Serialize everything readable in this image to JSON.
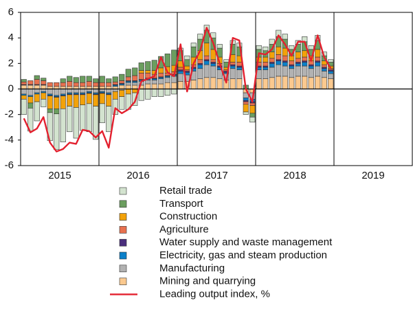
{
  "chart_data": {
    "type": "stacked-bar-line",
    "categories": [
      "2015",
      null,
      null,
      null,
      null,
      null,
      null,
      null,
      null,
      null,
      null,
      null,
      "2016",
      null,
      null,
      null,
      null,
      null,
      null,
      null,
      null,
      null,
      null,
      null,
      "2017",
      null,
      null,
      null,
      null,
      null,
      null,
      null,
      null,
      null,
      null,
      null,
      "2018",
      null,
      null,
      null,
      null,
      null,
      null,
      null,
      null,
      null,
      null,
      null,
      "2019",
      null,
      null,
      null,
      null,
      null,
      null,
      null,
      null,
      null,
      null,
      null
    ],
    "ylim": [
      -6,
      6
    ],
    "yticks": [
      -6,
      -4,
      -2,
      0,
      2,
      4,
      6
    ],
    "series": [
      {
        "name": "Retail trade",
        "color": "#d3e3cf",
        "values": [
          -1.2,
          -1.8,
          -1.5,
          -0.6,
          -2.2,
          -2.8,
          -2.6,
          -2.0,
          -2.4,
          -2.0,
          -2.2,
          -2.6,
          -1.5,
          -2.0,
          -1.2,
          -1.0,
          -1.2,
          -1.0,
          -0.9,
          -0.8,
          -0.6,
          -0.6,
          -0.5,
          -0.4,
          0.2,
          0.3,
          0.3,
          0.4,
          0.4,
          0.4,
          0.3,
          0.2,
          0.3,
          0.3,
          -0.2,
          -0.4,
          0.3,
          0.3,
          0.4,
          0.5,
          0.4,
          0.3,
          0.3,
          0.4,
          0.3,
          0.4,
          0.3,
          0.2,
          null,
          null,
          null,
          null,
          null,
          null,
          null,
          null,
          null,
          null,
          null,
          null
        ]
      },
      {
        "name": "Transport",
        "color": "#6b9e5f",
        "values": [
          0.2,
          -0.4,
          0.3,
          0.2,
          -0.3,
          -0.4,
          0.3,
          0.4,
          0.4,
          0.5,
          0.4,
          0.3,
          0.5,
          0.3,
          0.4,
          0.5,
          0.6,
          0.6,
          0.6,
          0.7,
          0.8,
          0.9,
          1.0,
          1.2,
          0.8,
          0.5,
          0.8,
          0.9,
          1.0,
          0.9,
          0.7,
          0.4,
          0.8,
          0.7,
          0.3,
          -0.3,
          0.6,
          0.5,
          0.6,
          0.8,
          0.7,
          0.5,
          0.6,
          0.7,
          0.5,
          0.7,
          0.4,
          0.3,
          null,
          null,
          null,
          null,
          null,
          null,
          null,
          null,
          null,
          null,
          null,
          null
        ]
      },
      {
        "name": "Construction",
        "color": "#f2a20a",
        "values": [
          -0.3,
          -0.5,
          -0.6,
          -0.5,
          -1.0,
          -0.9,
          -1.0,
          -0.9,
          -1.0,
          -0.8,
          -0.8,
          -0.9,
          -0.8,
          -0.9,
          -0.6,
          -0.5,
          -0.4,
          -0.3,
          0.2,
          0.2,
          0.3,
          0.4,
          0.5,
          0.5,
          0.5,
          0.3,
          0.6,
          0.7,
          1.0,
          0.8,
          0.5,
          0.2,
          0.6,
          0.5,
          -0.6,
          -0.6,
          0.4,
          0.4,
          0.5,
          0.6,
          0.6,
          0.4,
          0.5,
          0.5,
          0.4,
          0.6,
          0.3,
          0.2,
          null,
          null,
          null,
          null,
          null,
          null,
          null,
          null,
          null,
          null,
          null,
          null
        ]
      },
      {
        "name": "Agriculture",
        "color": "#e8714f",
        "values": [
          0.2,
          0.3,
          0.4,
          0.3,
          0.3,
          0.3,
          0.3,
          0.4,
          0.3,
          0.3,
          0.4,
          0.3,
          0.3,
          0.3,
          0.2,
          0.2,
          0.3,
          0.4,
          0.5,
          0.4,
          0.3,
          0.3,
          0.2,
          0.2,
          0.2,
          0.1,
          0.2,
          0.3,
          0.3,
          0.2,
          0.2,
          0.1,
          0.2,
          0.3,
          -0.2,
          -0.2,
          0.3,
          0.3,
          0.3,
          0.4,
          0.4,
          0.3,
          0.3,
          0.3,
          0.3,
          0.3,
          0.2,
          0.1,
          null,
          null,
          null,
          null,
          null,
          null,
          null,
          null,
          null,
          null,
          null,
          null
        ]
      },
      {
        "name": "Water supply and waste management",
        "color": "#4b2f7d",
        "values": [
          0.05,
          0.05,
          0.05,
          0.05,
          -0.05,
          -0.05,
          -0.05,
          -0.05,
          -0.05,
          -0.05,
          -0.05,
          -0.05,
          -0.05,
          -0.05,
          0.05,
          0.05,
          0.05,
          0.05,
          0.05,
          0.05,
          0.05,
          0.05,
          0.05,
          0.05,
          0.1,
          0.1,
          0.1,
          0.1,
          0.1,
          0.1,
          0.1,
          0.1,
          0.1,
          0.1,
          -0.1,
          -0.1,
          0.1,
          0.1,
          0.1,
          0.1,
          0.1,
          0.1,
          0.1,
          0.1,
          0.1,
          0.1,
          0.1,
          0.1,
          null,
          null,
          null,
          null,
          null,
          null,
          null,
          null,
          null,
          null,
          null,
          null
        ]
      },
      {
        "name": "Electricity, gas and steam production",
        "color": "#0b80c9",
        "values": [
          -0.1,
          -0.1,
          -0.1,
          -0.1,
          -0.1,
          -0.1,
          -0.1,
          -0.1,
          -0.1,
          -0.1,
          -0.1,
          -0.1,
          -0.1,
          -0.1,
          0.1,
          0.1,
          0.1,
          0.1,
          0.1,
          0.1,
          0.1,
          0.1,
          0.1,
          0.1,
          0.2,
          0.2,
          0.2,
          0.3,
          0.3,
          0.2,
          0.2,
          0.1,
          0.2,
          0.2,
          -0.2,
          -0.2,
          0.2,
          0.2,
          0.3,
          0.3,
          0.3,
          0.2,
          0.2,
          0.3,
          0.2,
          0.3,
          0.2,
          0.2,
          null,
          null,
          null,
          null,
          null,
          null,
          null,
          null,
          null,
          null,
          null,
          null
        ]
      },
      {
        "name": "Manufacturing",
        "color": "#b2b2b2",
        "values": [
          -0.4,
          -0.5,
          -0.3,
          -0.2,
          -0.4,
          -0.5,
          -0.4,
          -0.3,
          -0.3,
          -0.3,
          -0.2,
          -0.3,
          -0.2,
          -0.3,
          -0.2,
          -0.1,
          0.2,
          0.2,
          0.3,
          0.3,
          0.3,
          0.4,
          0.4,
          0.5,
          0.6,
          0.5,
          0.7,
          0.8,
          1.0,
          0.9,
          0.7,
          0.5,
          0.8,
          0.7,
          -0.4,
          -0.5,
          0.7,
          0.7,
          0.8,
          0.9,
          0.8,
          0.7,
          0.8,
          0.8,
          0.7,
          0.8,
          0.5,
          0.4,
          null,
          null,
          null,
          null,
          null,
          null,
          null,
          null,
          null,
          null,
          null,
          null
        ]
      },
      {
        "name": "Mining and quarrying",
        "color": "#fbc98f",
        "values": [
          0.3,
          0.3,
          0.3,
          0.3,
          0.2,
          0.2,
          0.2,
          0.2,
          0.2,
          0.2,
          0.2,
          0.2,
          0.2,
          0.2,
          0.2,
          0.3,
          0.3,
          0.3,
          0.3,
          0.4,
          0.4,
          0.4,
          0.5,
          0.5,
          0.6,
          0.6,
          0.7,
          0.8,
          0.9,
          0.9,
          0.8,
          0.7,
          0.8,
          0.8,
          -0.3,
          -0.3,
          0.8,
          0.8,
          0.9,
          1.0,
          1.0,
          0.9,
          1.0,
          1.0,
          0.9,
          1.0,
          0.9,
          0.8,
          null,
          null,
          null,
          null,
          null,
          null,
          null,
          null,
          null,
          null,
          null,
          null
        ]
      }
    ],
    "line": {
      "name": "Leading output index, %",
      "color": "#e3202e",
      "values": [
        -2.3,
        -3.4,
        -3.1,
        -2.2,
        -4.2,
        -4.9,
        -4.7,
        -4.2,
        -4.3,
        -3.2,
        -3.3,
        -3.8,
        -3.3,
        -4.6,
        -1.5,
        -1.9,
        -1.6,
        -1.0,
        0.6,
        0.8,
        1.0,
        2.5,
        1.3,
        1.0,
        3.5,
        -0.2,
        2.0,
        3.0,
        4.8,
        3.6,
        2.0,
        0.5,
        4.0,
        3.8,
        0.0,
        -1.0,
        2.8,
        2.7,
        3.1,
        4.2,
        3.5,
        2.6,
        3.7,
        3.7,
        2.2,
        4.2,
        2.5,
        1.6,
        null,
        null,
        null,
        null,
        null,
        null,
        null,
        null,
        null,
        null,
        null,
        null
      ]
    }
  }
}
